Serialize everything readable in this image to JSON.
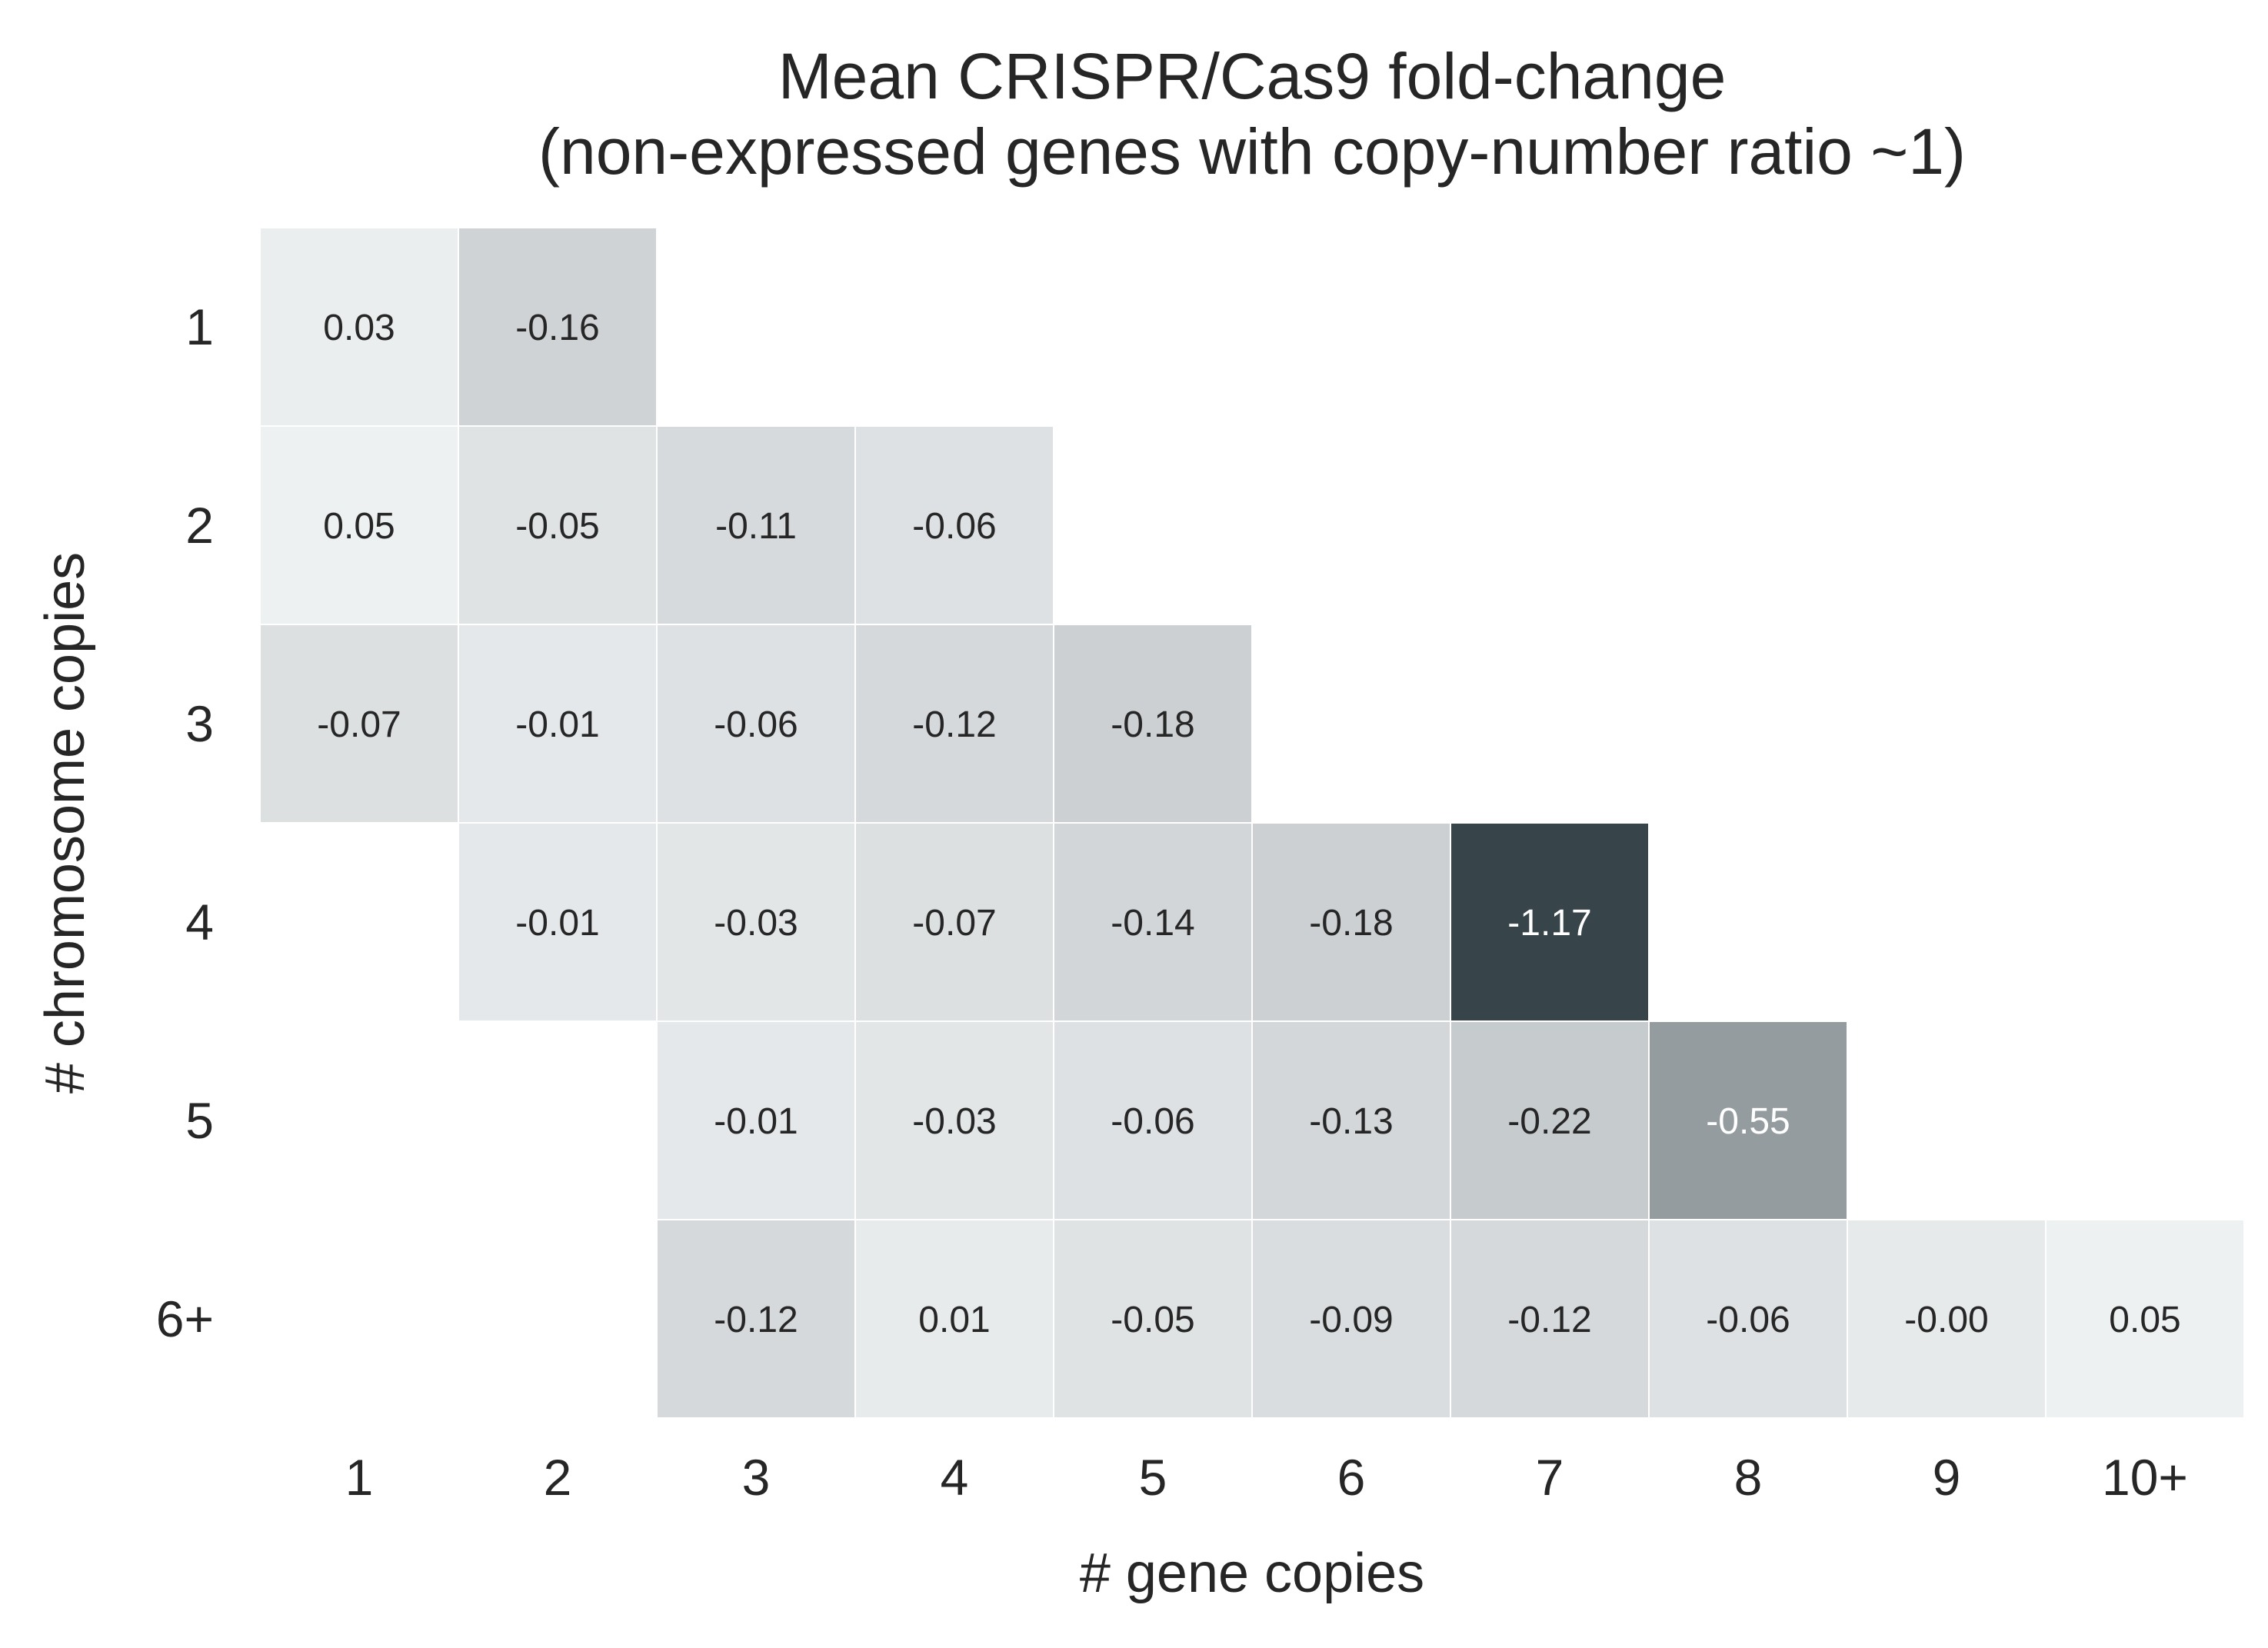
{
  "chart_data": {
    "type": "heatmap",
    "title": [
      "Mean CRISPR/Cas9 fold-change",
      "(non-expressed genes with copy-number ratio ~1)"
    ],
    "xlabel": "# gene copies",
    "ylabel": "# chromosome copies",
    "x_categories": [
      "1",
      "2",
      "3",
      "4",
      "5",
      "6",
      "7",
      "8",
      "9",
      "10+"
    ],
    "y_categories": [
      "1",
      "2",
      "3",
      "4",
      "5",
      "6+"
    ],
    "values": [
      [
        0.03,
        -0.16,
        null,
        null,
        null,
        null,
        null,
        null,
        null,
        null
      ],
      [
        0.05,
        -0.05,
        -0.11,
        -0.06,
        null,
        null,
        null,
        null,
        null,
        null
      ],
      [
        -0.07,
        -0.01,
        -0.06,
        -0.12,
        -0.18,
        null,
        null,
        null,
        null,
        null
      ],
      [
        null,
        -0.01,
        -0.03,
        -0.07,
        -0.14,
        -0.18,
        -1.17,
        null,
        null,
        null
      ],
      [
        null,
        null,
        -0.01,
        -0.03,
        -0.06,
        -0.13,
        -0.22,
        -0.55,
        null,
        null
      ],
      [
        null,
        null,
        -0.12,
        0.01,
        -0.05,
        -0.09,
        -0.12,
        -0.06,
        -0.0,
        0.05
      ]
    ],
    "cell_labels": [
      [
        "0.03",
        "-0.16",
        "",
        "",
        "",
        "",
        "",
        "",
        "",
        ""
      ],
      [
        "0.05",
        "-0.05",
        "-0.11",
        "-0.06",
        "",
        "",
        "",
        "",
        "",
        ""
      ],
      [
        "-0.07",
        "-0.01",
        "-0.06",
        "-0.12",
        "-0.18",
        "",
        "",
        "",
        "",
        ""
      ],
      [
        "",
        "-0.01",
        "-0.03",
        "-0.07",
        "-0.14",
        "-0.18",
        "-1.17",
        "",
        "",
        ""
      ],
      [
        "",
        "",
        "-0.01",
        "-0.03",
        "-0.06",
        "-0.13",
        "-0.22",
        "-0.55",
        "",
        ""
      ],
      [
        "",
        "",
        "-0.12",
        "0.01",
        "-0.05",
        "-0.09",
        "-0.12",
        "-0.06",
        "-0.00",
        "0.05"
      ]
    ],
    "color_scale": {
      "light": "#eef1f2",
      "dark": "#37444a",
      "vmin": -1.17,
      "vmax": 0.05
    },
    "text_colors": {
      "on_light": "#262626",
      "on_dark": "#ffffff"
    },
    "grid": false
  }
}
